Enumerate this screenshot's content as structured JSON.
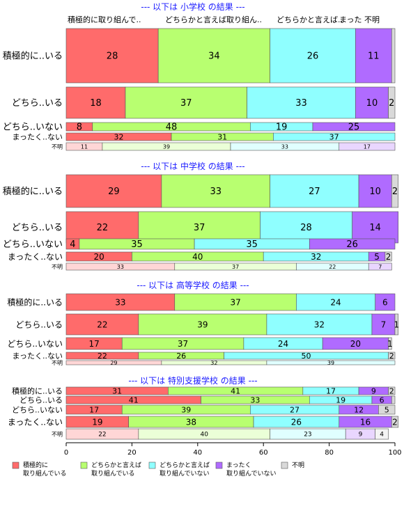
{
  "chart_data": {
    "type": "bar",
    "orientation": "horizontal",
    "stacked": true,
    "xlim": [
      0,
      100
    ],
    "x_ticks": [
      "0",
      "20",
      "40",
      "60",
      "80",
      "100"
    ],
    "legend_position": "bottom",
    "column_headers": [
      "積極的に取り組んで..",
      "どちらかと言えば取り組ん..",
      "どちらかと言えば..",
      "まった 不明"
    ],
    "categories": [
      {
        "name": "積極的に\n取り組んでいる",
        "color": "#ff6b6b"
      },
      {
        "name": "どちらかと言えば\n取り組んでいる",
        "color": "#b8ff70"
      },
      {
        "name": "どちらかと言えば\n取り組んでいない",
        "color": "#8fffff"
      },
      {
        "name": "まったく\n取り組んでいない",
        "color": "#b06bff"
      },
      {
        "name": "不明",
        "color": "#d9d9d9"
      }
    ],
    "panels": [
      {
        "title": "--- 以下は 小学校 の結果 ---",
        "rows": [
          {
            "label": "積極的に..いる",
            "values": [
              28,
              34,
              26,
              11,
              1
            ],
            "shown": [
              "28",
              "34",
              "26",
              "11",
              ""
            ]
          },
          {
            "label": "どちら..いる",
            "values": [
              18,
              37,
              33,
              10,
              2
            ],
            "shown": [
              "18",
              "37",
              "33",
              "10",
              "2"
            ]
          },
          {
            "label": "どちら..いない",
            "values": [
              8,
              48,
              19,
              25,
              0
            ],
            "shown": [
              "8",
              "48",
              "19",
              "25",
              ""
            ]
          },
          {
            "label": "まったく..ない",
            "values": [
              32,
              31,
              37,
              0,
              0
            ],
            "shown": [
              "32",
              "31",
              "37",
              "",
              ""
            ]
          },
          {
            "label": "不明",
            "values": [
              11,
              39,
              33,
              17,
              0
            ],
            "shown": [
              "11",
              "39",
              "33",
              "17",
              ""
            ]
          }
        ]
      },
      {
        "title": "--- 以下は 中学校 の結果 ---",
        "rows": [
          {
            "label": "積極的に..いる",
            "values": [
              29,
              33,
              27,
              10,
              2
            ],
            "shown": [
              "29",
              "33",
              "27",
              "10",
              "2"
            ]
          },
          {
            "label": "どちら..いる",
            "values": [
              22,
              37,
              28,
              14,
              0
            ],
            "shown": [
              "22",
              "37",
              "28",
              "14",
              ""
            ]
          },
          {
            "label": "どちら..いない",
            "values": [
              4,
              35,
              35,
              26,
              0
            ],
            "shown": [
              "4",
              "35",
              "35",
              "26",
              ""
            ]
          },
          {
            "label": "まったく..ない",
            "values": [
              20,
              40,
              32,
              5,
              2
            ],
            "shown": [
              "20",
              "40",
              "32",
              "5",
              "2"
            ]
          },
          {
            "label": "不明",
            "values": [
              33,
              37,
              22,
              7,
              0
            ],
            "shown": [
              "33",
              "37",
              "22",
              "7",
              ""
            ]
          }
        ]
      },
      {
        "title": "--- 以下は 高等学校 の結果 ---",
        "rows": [
          {
            "label": "積極的に..いる",
            "values": [
              33,
              37,
              24,
              6,
              0
            ],
            "shown": [
              "33",
              "37",
              "24",
              "6",
              ""
            ]
          },
          {
            "label": "どちら..いる",
            "values": [
              22,
              39,
              32,
              7,
              1
            ],
            "shown": [
              "22",
              "39",
              "32",
              "7",
              "1"
            ]
          },
          {
            "label": "どちら..いない",
            "values": [
              17,
              37,
              24,
              20,
              1
            ],
            "shown": [
              "17",
              "37",
              "24",
              "20",
              "1"
            ]
          },
          {
            "label": "まったく..ない",
            "values": [
              22,
              26,
              50,
              0,
              2
            ],
            "shown": [
              "22",
              "26",
              "50",
              "",
              "2"
            ]
          },
          {
            "label": "不明",
            "values": [
              29,
              32,
              39,
              0,
              0
            ],
            "shown": [
              "29",
              "32",
              "39",
              "",
              ""
            ]
          }
        ]
      },
      {
        "title": "--- 以下は 特別支援学校 の結果 ---",
        "rows": [
          {
            "label": "積極的に..いる",
            "values": [
              31,
              41,
              17,
              9,
              2
            ],
            "shown": [
              "31",
              "41",
              "17",
              "9",
              "2"
            ]
          },
          {
            "label": "どちら..いる",
            "values": [
              41,
              33,
              19,
              6,
              1
            ],
            "shown": [
              "41",
              "33",
              "19",
              "6",
              ""
            ]
          },
          {
            "label": "どちら..いない",
            "values": [
              17,
              39,
              27,
              12,
              5
            ],
            "shown": [
              "17",
              "39",
              "27",
              "12",
              "5"
            ]
          },
          {
            "label": "まったく..ない",
            "values": [
              19,
              38,
              26,
              16,
              2
            ],
            "shown": [
              "19",
              "38",
              "26",
              "16",
              "2"
            ]
          },
          {
            "label": "不明",
            "values": [
              22,
              40,
              23,
              9,
              4
            ],
            "shown": [
              "22",
              "40",
              "23",
              "9",
              "4"
            ]
          }
        ]
      }
    ]
  }
}
